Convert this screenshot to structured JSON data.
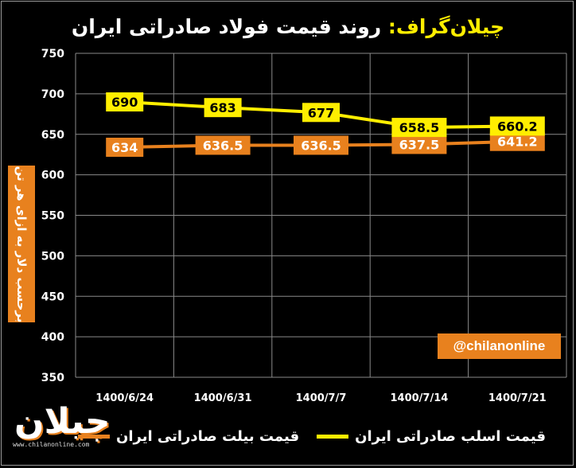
{
  "title": {
    "brand": "چیلان‌گراف:",
    "main": "روند قیمت فولاد صادراتی ایران"
  },
  "watermark": "@chilanonline",
  "logo": {
    "mark": "چیلان",
    "url": "www.chilanonline.com"
  },
  "colors": {
    "background": "#000000",
    "grid": "#8a8a8a",
    "billet": "#e8811e",
    "slab": "#ffee00"
  },
  "chart_data": {
    "type": "line",
    "title": "روند قیمت فولاد صادراتی ایران",
    "ylabel": "برحسب دلار به ازای هر تن",
    "xlabel": "",
    "categories": [
      "1400/6/24",
      "1400/6/31",
      "1400/7/7",
      "1400/7/14",
      "1400/7/21"
    ],
    "ylim": [
      350,
      750
    ],
    "yticks": [
      350,
      400,
      450,
      500,
      550,
      600,
      650,
      700,
      750
    ],
    "grid": true,
    "legend_position": "bottom",
    "series": [
      {
        "name": "قیمت اسلب صادراتی ایران",
        "color": "#ffee00",
        "values": [
          690,
          683,
          677,
          658.5,
          660.2
        ]
      },
      {
        "name": "قیمت بیلت صادراتی ایران",
        "color": "#e8811e",
        "values": [
          634,
          636.5,
          636.5,
          637.5,
          641.2
        ]
      }
    ]
  }
}
